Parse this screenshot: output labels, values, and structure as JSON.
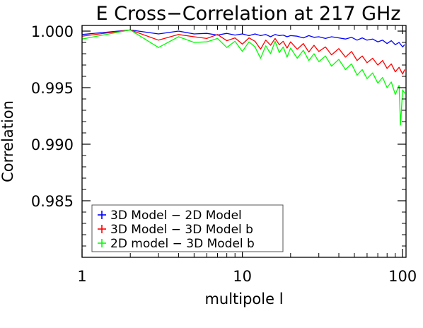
{
  "chart_data": {
    "type": "line",
    "title": "E Cross−Correlation at 217 GHz",
    "xlabel": "multipole l",
    "ylabel": "Correlation",
    "xscale": "log",
    "xlim": [
      1,
      105
    ],
    "ylim": [
      0.98,
      1.0005
    ],
    "x_ticks": [
      1,
      10,
      100
    ],
    "x_tick_labels": [
      "1",
      "10",
      "100"
    ],
    "y_ticks": [
      0.985,
      0.99,
      0.995,
      1.0
    ],
    "y_tick_labels": [
      "0.985",
      "0.990",
      "0.995",
      "1.000"
    ],
    "legend_position": "bottom-left",
    "series": [
      {
        "name": "3D Model − 2D Model",
        "color": "#0000ff",
        "x": [
          1,
          2,
          3,
          4,
          5,
          6,
          7,
          8,
          9,
          10,
          11,
          12,
          13,
          14,
          15,
          16,
          17,
          18,
          19,
          20,
          22,
          24,
          26,
          28,
          30,
          33,
          36,
          40,
          44,
          48,
          52,
          56,
          60,
          65,
          70,
          75,
          80,
          85,
          90,
          95,
          100,
          103
        ],
        "values": [
          0.9997,
          1.0001,
          0.99975,
          1.0,
          0.99975,
          0.9998,
          0.99965,
          0.9998,
          0.99965,
          0.99975,
          0.9996,
          0.99975,
          0.9996,
          0.9997,
          0.9995,
          0.9997,
          0.9996,
          0.99965,
          0.9995,
          0.9996,
          0.99955,
          0.9994,
          0.9996,
          0.99945,
          0.9995,
          0.99935,
          0.9995,
          0.9994,
          0.9993,
          0.99945,
          0.9992,
          0.9994,
          0.9992,
          0.9993,
          0.99905,
          0.9992,
          0.9989,
          0.99915,
          0.9988,
          0.999,
          0.9986,
          0.9988
        ]
      },
      {
        "name": "3D Model − 3D Model b",
        "color": "#ff0000",
        "x": [
          1,
          2,
          3,
          4,
          5,
          6,
          7,
          8,
          9,
          10,
          11,
          12,
          13,
          14,
          15,
          16,
          17,
          18,
          19,
          20,
          22,
          24,
          26,
          28,
          30,
          33,
          36,
          40,
          44,
          48,
          52,
          56,
          60,
          65,
          70,
          75,
          80,
          85,
          90,
          95,
          100,
          103
        ],
        "values": [
          0.99955,
          1.0001,
          0.9992,
          0.9997,
          0.9995,
          0.99935,
          0.9997,
          0.99915,
          0.9994,
          0.99885,
          0.9994,
          0.9991,
          0.9984,
          0.9992,
          0.99875,
          0.99935,
          0.9988,
          0.9991,
          0.9985,
          0.99905,
          0.9984,
          0.9989,
          0.99815,
          0.99875,
          0.9982,
          0.9986,
          0.9979,
          0.99845,
          0.9977,
          0.9982,
          0.9974,
          0.9978,
          0.9972,
          0.9976,
          0.997,
          0.9974,
          0.9967,
          0.9971,
          0.9964,
          0.9968,
          0.9962,
          0.9966
        ]
      },
      {
        "name": "2D model − 3D Model b",
        "color": "#00ff00",
        "x": [
          1,
          2,
          3,
          4,
          5,
          6,
          7,
          8,
          9,
          10,
          11,
          12,
          13,
          14,
          15,
          16,
          17,
          18,
          19,
          20,
          22,
          24,
          26,
          28,
          30,
          33,
          36,
          40,
          44,
          48,
          52,
          56,
          60,
          65,
          70,
          75,
          80,
          85,
          90,
          95,
          97,
          100,
          103
        ],
        "values": [
          0.9993,
          1.0001,
          0.99855,
          0.9995,
          0.999,
          0.99905,
          0.99935,
          0.99855,
          0.9991,
          0.9982,
          0.99905,
          0.9986,
          0.9976,
          0.9987,
          0.998,
          0.9991,
          0.9981,
          0.9986,
          0.9977,
          0.9985,
          0.9976,
          0.9983,
          0.9974,
          0.998,
          0.9973,
          0.9978,
          0.9969,
          0.9975,
          0.9966,
          0.9971,
          0.9961,
          0.9966,
          0.9958,
          0.9963,
          0.9954,
          0.9959,
          0.995,
          0.9955,
          0.9944,
          0.9952,
          0.9917,
          0.9948,
          0.9945
        ]
      }
    ]
  }
}
